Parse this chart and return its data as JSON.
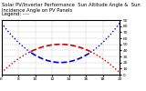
{
  "title_line1": "Solar PV/Inverter Performance  Sun Altitude Angle &  Sun Incidence Angle on PV Panels",
  "title_line2": "Legend: ----",
  "ylim": [
    0,
    90
  ],
  "xlim": [
    6,
    20
  ],
  "xtick_values": [
    6,
    8,
    10,
    12,
    14,
    16,
    18,
    20
  ],
  "xtick_labels": [
    "6",
    "8",
    "10",
    "12",
    "14",
    "16",
    "18",
    "20"
  ],
  "ytick_values": [
    0,
    10,
    20,
    30,
    40,
    50,
    60,
    70,
    80,
    90
  ],
  "ytick_labels": [
    "0",
    "10",
    "20",
    "30",
    "40",
    "50",
    "60",
    "70",
    "80",
    "90"
  ],
  "blue_color": "#0000cc",
  "red_color": "#cc0000",
  "bg_color": "#ffffff",
  "grid_color": "#888888",
  "title_fontsize": 3.8,
  "tick_fontsize": 3.2,
  "blue_peak": 85,
  "blue_trough": 20,
  "red_peak": 50,
  "red_trough": 3,
  "x_start": 6,
  "x_end": 20,
  "x_noon": 13
}
